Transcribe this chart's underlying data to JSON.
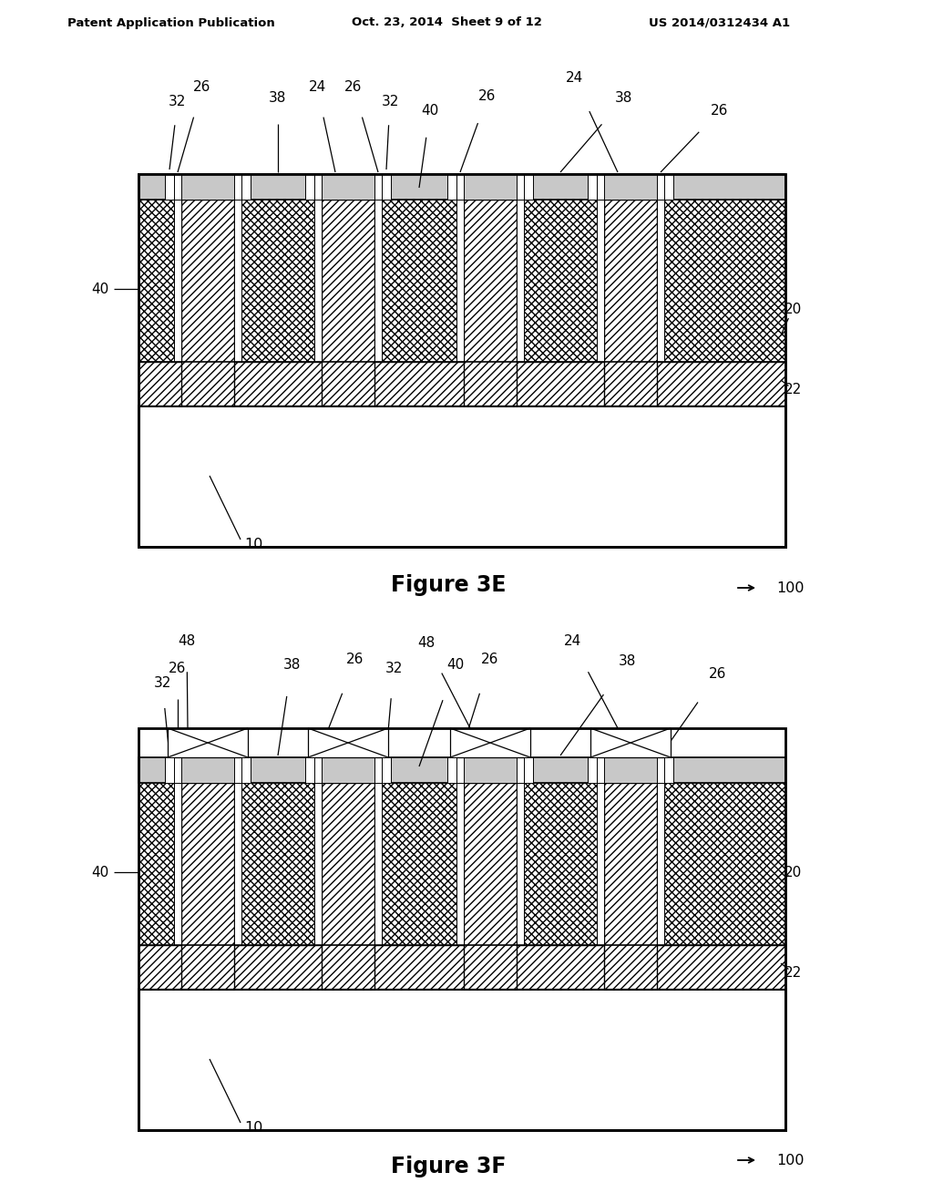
{
  "title_left": "Patent Application Publication",
  "title_mid": "Oct. 23, 2014  Sheet 9 of 12",
  "title_right": "US 2014/0312434 A1",
  "fig3e_label": "Figure 3E",
  "fig3f_label": "Figure 3F",
  "bg_color": "#ffffff",
  "line_color": "#000000",
  "gray_color": "#c8c8c8",
  "light_gray": "#e0e0e0"
}
